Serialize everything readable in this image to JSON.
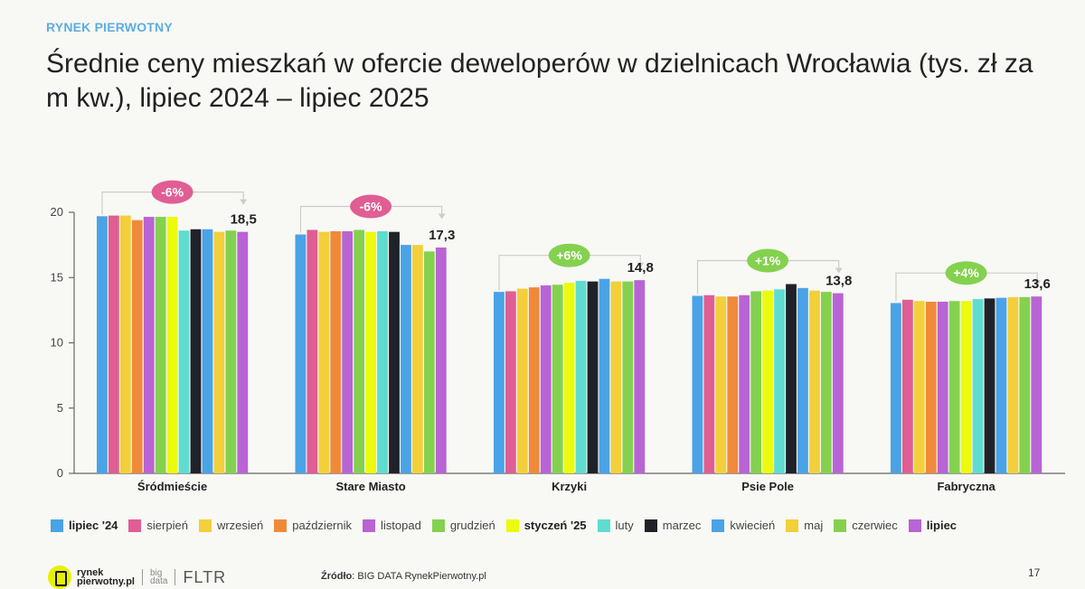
{
  "header": {
    "kicker": "RYNEK PIERWOTNY",
    "title": "Średnie ceny mieszkań w ofercie deweloperów w dzielnicach Wrocławia (tys. zł za m kw.), lipiec 2024 – lipiec 2025"
  },
  "chart_data": {
    "type": "bar",
    "title": "Średnie ceny mieszkań w ofercie deweloperów w dzielnicach Wrocławia (tys. zł za m kw.), lipiec 2024 – lipiec 2025",
    "xlabel": "",
    "ylabel": "",
    "ylim": [
      0,
      20
    ],
    "yticks": [
      0,
      5,
      10,
      15,
      20
    ],
    "grid": false,
    "legend_position": "bottom",
    "categories": [
      "Śródmieście",
      "Stare Miasto",
      "Krzyki",
      "Psie Pole",
      "Fabryczna"
    ],
    "series": [
      {
        "name": "lipiec '24",
        "color": "#4aa3e6",
        "bold": true,
        "values": [
          19.7,
          18.3,
          13.9,
          13.6,
          13.05
        ]
      },
      {
        "name": "sierpień",
        "color": "#e05e93",
        "bold": false,
        "values": [
          19.75,
          18.65,
          13.95,
          13.65,
          13.3
        ]
      },
      {
        "name": "wrzesień",
        "color": "#f2cf3b",
        "bold": false,
        "values": [
          19.75,
          18.5,
          14.15,
          13.55,
          13.2
        ]
      },
      {
        "name": "październik",
        "color": "#f08a3b",
        "bold": false,
        "values": [
          19.4,
          18.55,
          14.25,
          13.55,
          13.15
        ]
      },
      {
        "name": "listopad",
        "color": "#b864d4",
        "bold": false,
        "values": [
          19.65,
          18.55,
          14.4,
          13.65,
          13.15
        ]
      },
      {
        "name": "grudzień",
        "color": "#84d14f",
        "bold": false,
        "values": [
          19.65,
          18.65,
          14.45,
          13.95,
          13.2
        ]
      },
      {
        "name": "styczeń '25",
        "color": "#ecfa0e",
        "bold": true,
        "values": [
          19.65,
          18.5,
          14.6,
          14.0,
          13.2
        ]
      },
      {
        "name": "luty",
        "color": "#5fdcd0",
        "bold": false,
        "values": [
          18.6,
          18.55,
          14.75,
          14.1,
          13.35
        ]
      },
      {
        "name": "marzec",
        "color": "#202229",
        "bold": false,
        "values": [
          18.7,
          18.5,
          14.7,
          14.5,
          13.4
        ]
      },
      {
        "name": "kwiecień",
        "color": "#4aa3e6",
        "bold": false,
        "values": [
          18.7,
          17.5,
          14.9,
          14.2,
          13.45
        ]
      },
      {
        "name": "maj",
        "color": "#f2cf3b",
        "bold": false,
        "values": [
          18.5,
          17.5,
          14.7,
          14.0,
          13.5
        ]
      },
      {
        "name": "czerwiec",
        "color": "#84d14f",
        "bold": false,
        "values": [
          18.6,
          17.0,
          14.7,
          13.9,
          13.5
        ]
      },
      {
        "name": "lipiec",
        "color": "#b864d4",
        "bold": true,
        "values": [
          18.5,
          17.3,
          14.8,
          13.8,
          13.55
        ]
      }
    ],
    "annotations": [
      {
        "category": "Śródmieście",
        "change": "-6%",
        "badge_color": "#e05e93",
        "last_label": "18,5"
      },
      {
        "category": "Stare Miasto",
        "change": "-6%",
        "badge_color": "#e05e93",
        "last_label": "17,3"
      },
      {
        "category": "Krzyki",
        "change": "+6%",
        "badge_color": "#84d14f",
        "last_label": "14,8"
      },
      {
        "category": "Psie Pole",
        "change": "+1%",
        "badge_color": "#84d14f",
        "last_label": "13,8"
      },
      {
        "category": "Fabryczna",
        "change": "+4%",
        "badge_color": "#84d14f",
        "last_label": "13,6"
      }
    ]
  },
  "footer": {
    "logo_text_1": "rynek",
    "logo_text_2": "pierwotny.pl",
    "logo_bigdata_1": "big",
    "logo_bigdata_2": "data",
    "logo_fltr": "FLTR",
    "source_label": "Źródło",
    "source_text": ": BIG DATA RynekPierwotny.pl",
    "page_number": "17"
  }
}
